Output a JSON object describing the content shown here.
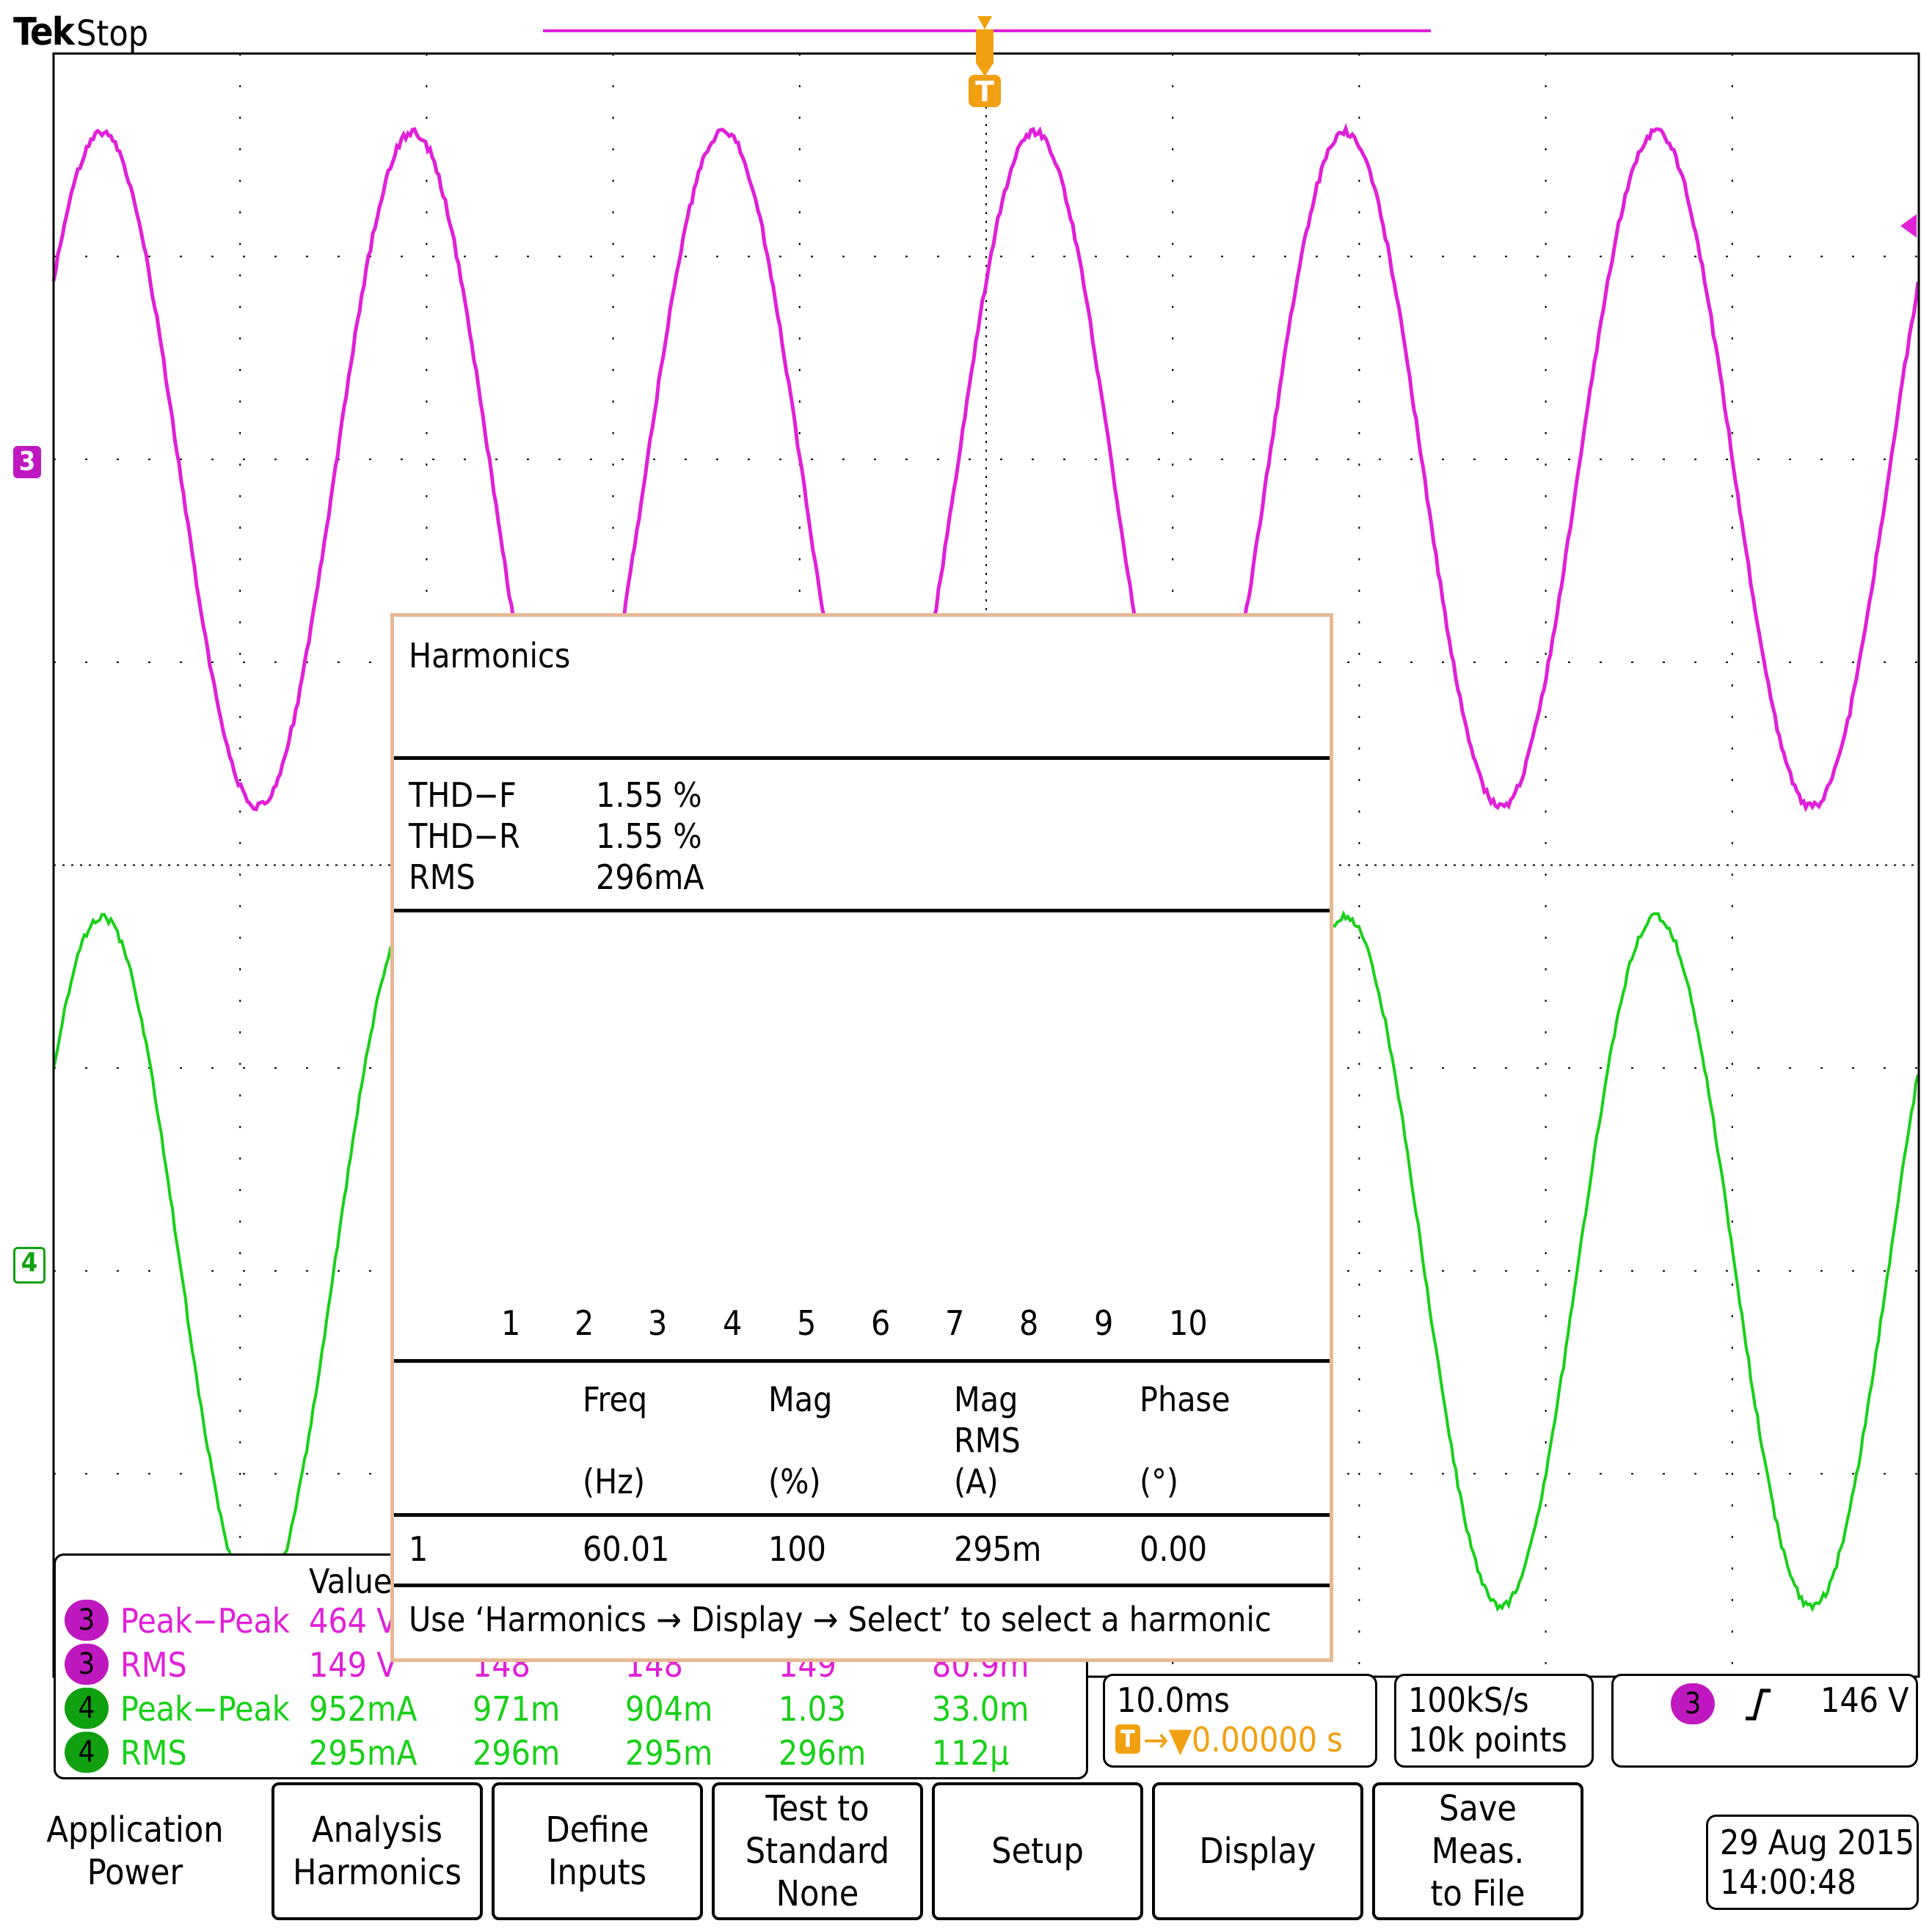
{
  "header": {
    "brand": "Tek",
    "status": "Stop"
  },
  "colors": {
    "ch3": "#e020d8",
    "ch4": "#18d018",
    "trigger": "#f0a010",
    "dialog_border": "#e6b894"
  },
  "markers": {
    "ch3": "3",
    "ch4": "4",
    "trigger": "T"
  },
  "dialog": {
    "title": "Harmonics",
    "summary": [
      {
        "label": "THD−F",
        "value": "1.55 %"
      },
      {
        "label": "THD−R",
        "value": "1.55 %"
      },
      {
        "label": "RMS",
        "value": "296mA"
      }
    ],
    "harmonic_numbers": [
      "1",
      "2",
      "3",
      "4",
      "5",
      "6",
      "7",
      "8",
      "9",
      "10"
    ],
    "columns": {
      "freq": "Freq",
      "mag": "Mag",
      "magrms": "Mag",
      "magrms2": "RMS",
      "phase": "Phase",
      "freq_unit": "(Hz)",
      "mag_unit": "(%)",
      "magrms_unit": "(A)",
      "phase_unit": "(°)"
    },
    "row": {
      "n": "1",
      "freq": "60.01",
      "mag": "100",
      "magrms": "295m",
      "phase": "0.00"
    },
    "hint": "Use ‘Harmonics → Display → Select’ to select a harmonic"
  },
  "measurements": {
    "header_value": "Value",
    "rows": [
      {
        "ch": "3",
        "label": "Peak−Peak",
        "value": "464 V",
        "c1": "",
        "c2": "",
        "c3": "",
        "c4": ""
      },
      {
        "ch": "3",
        "label": "RMS",
        "value": "149 V",
        "c1": "148",
        "c2": "148",
        "c3": "149",
        "c4": "80.9m"
      },
      {
        "ch": "4",
        "label": "Peak−Peak",
        "value": "952mA",
        "c1": "971m",
        "c2": "904m",
        "c3": "1.03",
        "c4": "33.0m"
      },
      {
        "ch": "4",
        "label": "RMS",
        "value": "295mA",
        "c1": "296m",
        "c2": "295m",
        "c3": "296m",
        "c4": "112µ"
      }
    ]
  },
  "timebase": {
    "scale": "10.0ms",
    "position": "0.00000 s"
  },
  "acquisition": {
    "rate": "100kS/s",
    "points": "10k points"
  },
  "trigger": {
    "channel": "3",
    "slope": "rising",
    "level": "146 V"
  },
  "softkeys": [
    {
      "id": "application",
      "lines": [
        "Application",
        "Power"
      ]
    },
    {
      "id": "analysis",
      "lines": [
        "Analysis",
        "Harmonics"
      ]
    },
    {
      "id": "define-inputs",
      "lines": [
        "Define",
        "Inputs"
      ]
    },
    {
      "id": "test-standard",
      "lines": [
        "Test to",
        "Standard",
        "None"
      ]
    },
    {
      "id": "setup",
      "lines": [
        "Setup"
      ]
    },
    {
      "id": "display",
      "lines": [
        "Display"
      ]
    },
    {
      "id": "save-meas",
      "lines": [
        "Save",
        "Meas.",
        "to File"
      ]
    }
  ],
  "datetime": {
    "date": "29 Aug 2015",
    "time": "14:00:48"
  }
}
